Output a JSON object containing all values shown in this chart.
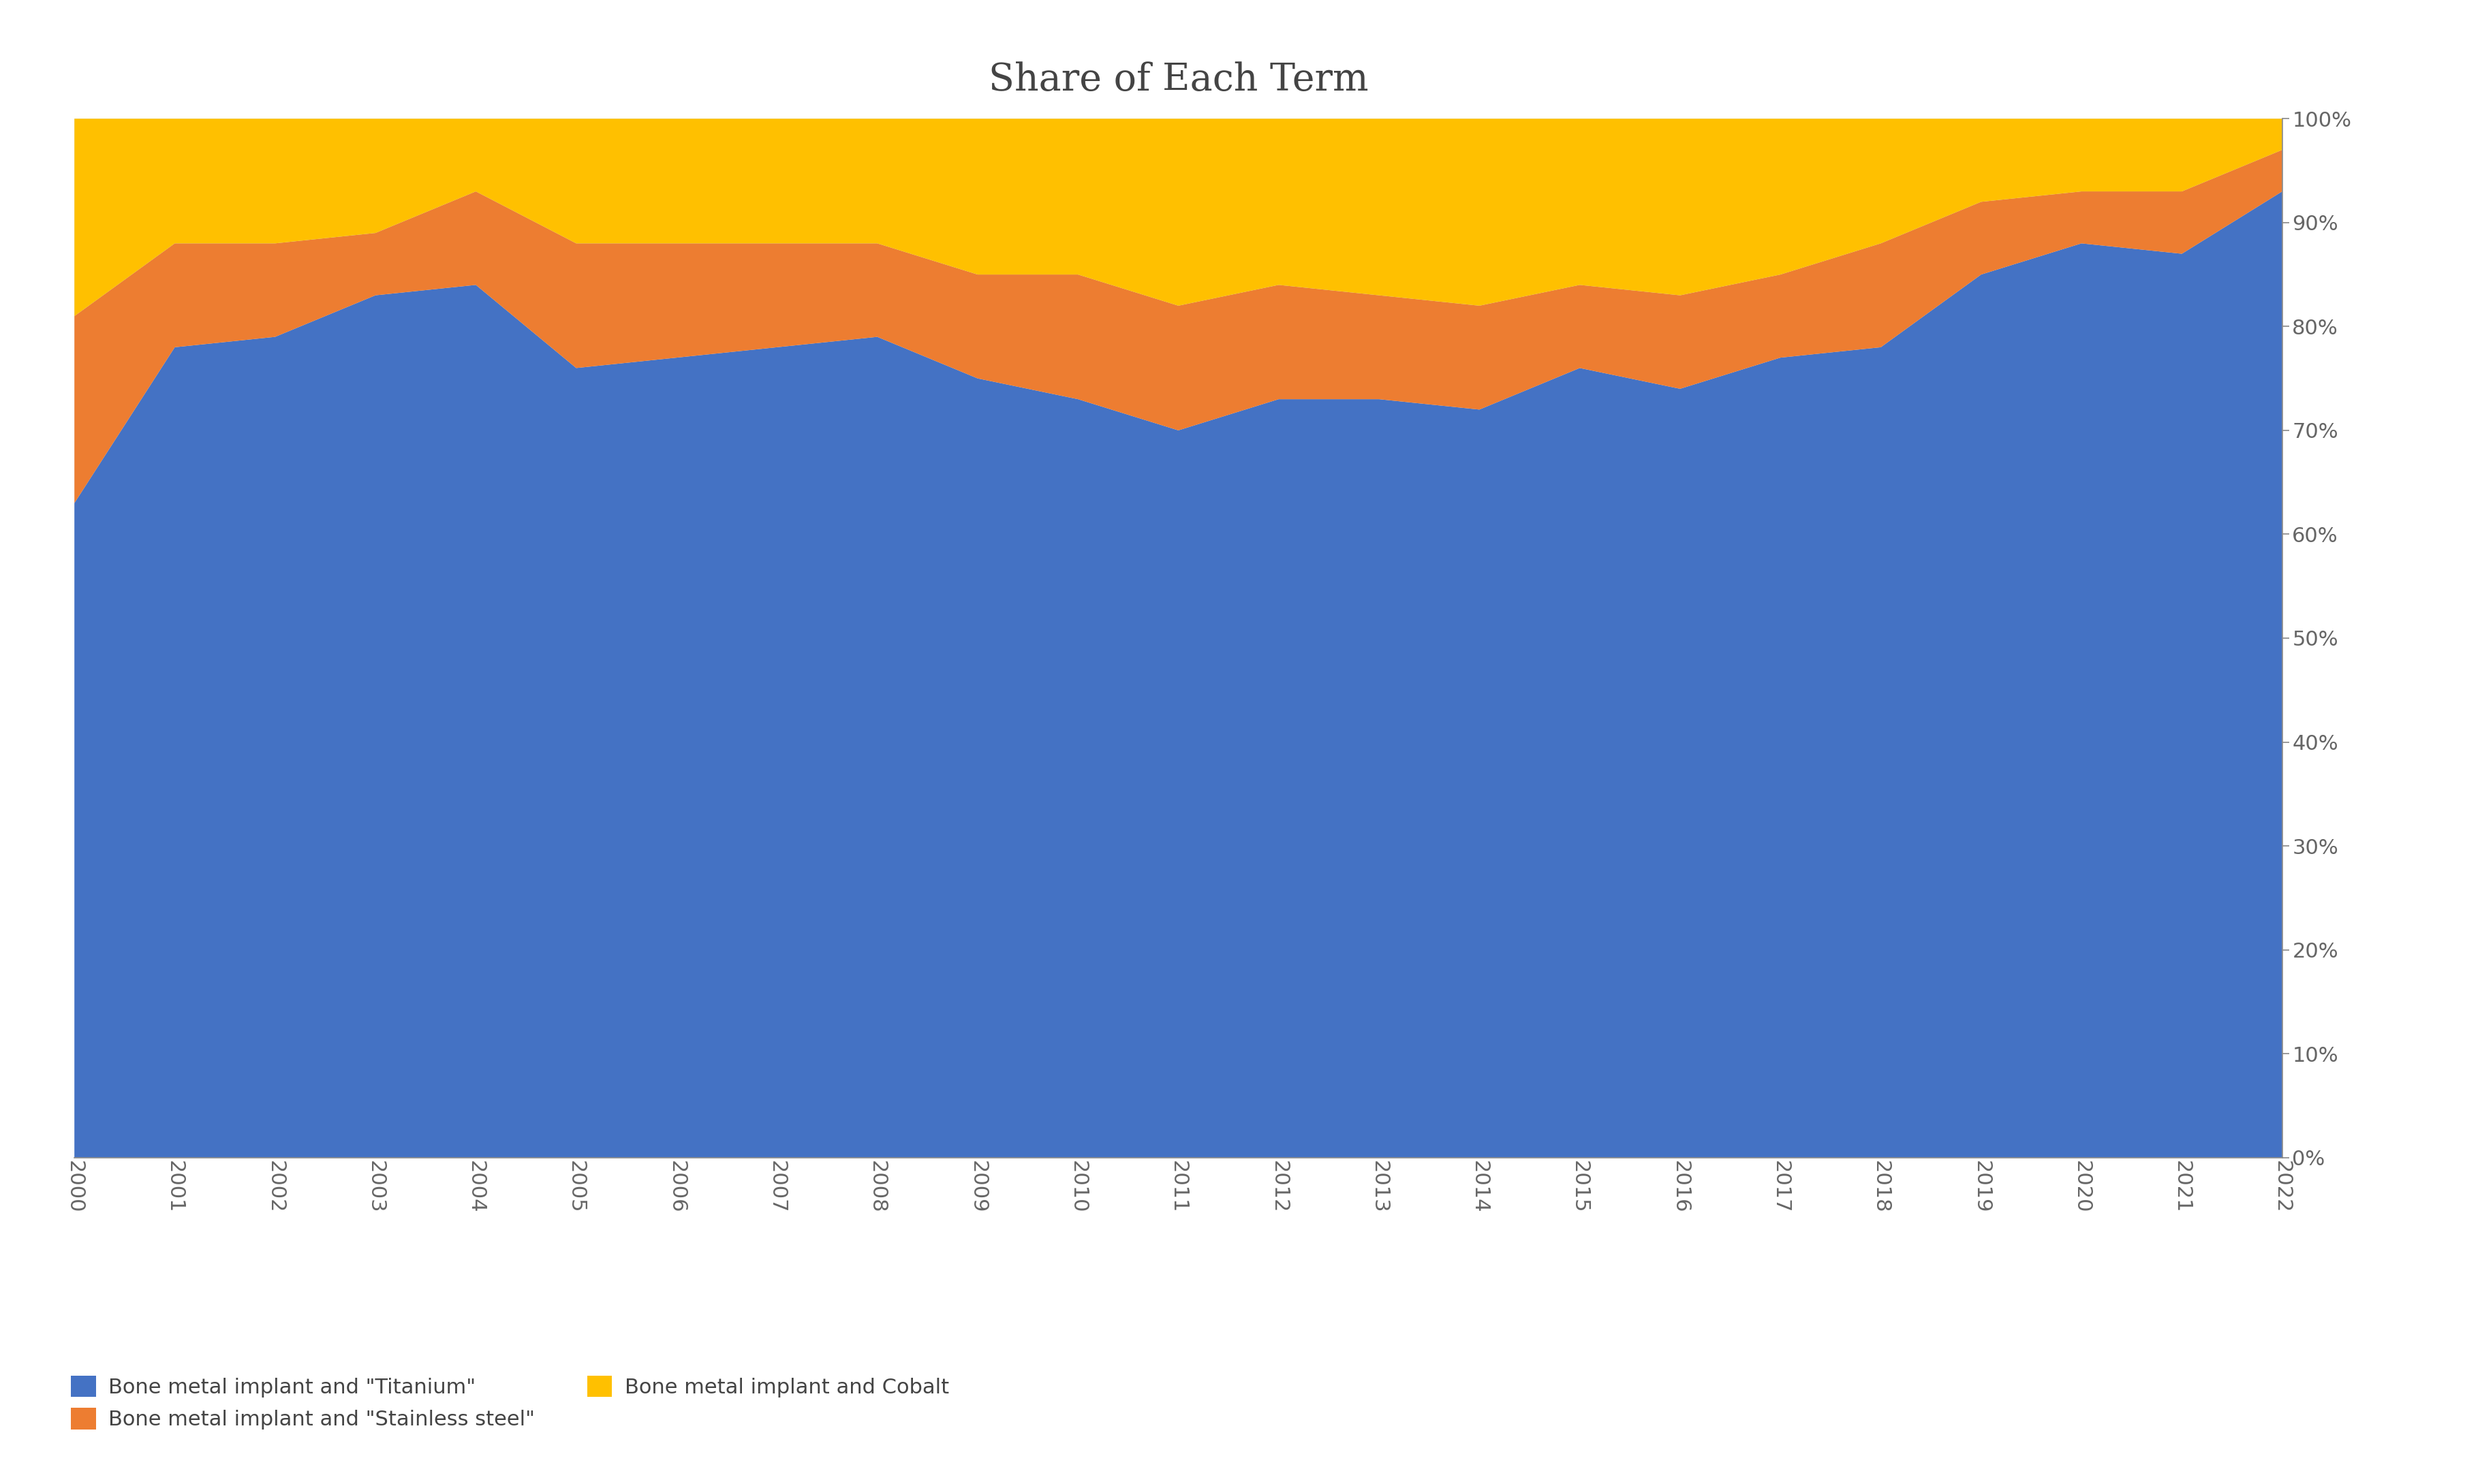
{
  "title": "Share of Each Term",
  "years": [
    2000,
    2001,
    2002,
    2003,
    2004,
    2005,
    2006,
    2007,
    2008,
    2009,
    2010,
    2011,
    2012,
    2013,
    2014,
    2015,
    2016,
    2017,
    2018,
    2019,
    2020,
    2021,
    2022
  ],
  "titanium": [
    63,
    78,
    79,
    83,
    84,
    76,
    77,
    78,
    79,
    75,
    73,
    70,
    73,
    73,
    72,
    76,
    74,
    77,
    78,
    85,
    88,
    87,
    93
  ],
  "stainless": [
    18,
    10,
    9,
    6,
    9,
    12,
    11,
    10,
    9,
    10,
    12,
    12,
    11,
    10,
    10,
    8,
    9,
    8,
    10,
    7,
    5,
    6,
    4
  ],
  "cobalt": [
    19,
    12,
    12,
    11,
    7,
    12,
    12,
    12,
    12,
    15,
    15,
    18,
    16,
    17,
    18,
    16,
    17,
    15,
    12,
    8,
    7,
    7,
    3
  ],
  "colors": {
    "titanium": "#4472C4",
    "stainless": "#ED7D31",
    "cobalt": "#FFC000"
  },
  "legend_labels": {
    "titanium": "Bone metal implant and \"Titanium\"",
    "stainless": "Bone metal implant and \"Stainless steel\"",
    "cobalt": "Bone metal implant and Cobalt"
  },
  "plot_bg_color": "#DCE6F1",
  "background_color": "#FFFFFF",
  "title_fontsize": 40,
  "tick_fontsize": 22,
  "legend_fontsize": 22
}
